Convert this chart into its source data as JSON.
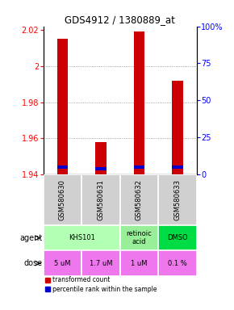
{
  "title": "GDS4912 / 1380889_at",
  "samples": [
    "GSM580630",
    "GSM580631",
    "GSM580632",
    "GSM580633"
  ],
  "red_values": [
    2.015,
    1.958,
    2.019,
    1.992
  ],
  "blue_values": [
    1.944,
    1.943,
    1.944,
    1.944
  ],
  "ylim": [
    1.94,
    2.022
  ],
  "yticks_left": [
    1.94,
    1.96,
    1.98,
    2.0,
    2.02
  ],
  "yticks_left_labels": [
    "1.94",
    "1.96",
    "1.98",
    "2",
    "2.02"
  ],
  "pct_ticks": [
    0,
    25,
    50,
    75,
    100
  ],
  "pct_labels": [
    "0",
    "25",
    "50",
    "75",
    "100%"
  ],
  "agent_data": [
    {
      "c0": 0,
      "c1": 1,
      "text": "KHS101",
      "color": "#b3ffb3"
    },
    {
      "c0": 2,
      "c1": 2,
      "text": "retinoic\nacid",
      "color": "#99ee99"
    },
    {
      "c0": 3,
      "c1": 3,
      "text": "DMSO",
      "color": "#00dd44"
    }
  ],
  "dose_labels": [
    "5 uM",
    "1.7 uM",
    "1 uM",
    "0.1 %"
  ],
  "dose_color": "#ee77ee",
  "bar_color_red": "#cc0000",
  "bar_color_blue": "#0000cc",
  "grid_color": "#888888",
  "sample_bg": "#d0d0d0"
}
